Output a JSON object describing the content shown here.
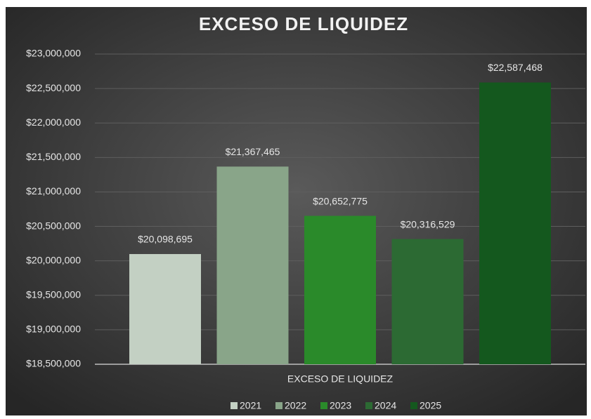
{
  "chart_data": {
    "type": "bar",
    "title": "EXCESO DE LIQUIDEZ",
    "categories": [
      "EXCESO DE LIQUIDEZ"
    ],
    "series": [
      {
        "name": "2021",
        "color": "#c3d0c3",
        "values": [
          20098695
        ],
        "value_labels": [
          "$20,098,695"
        ]
      },
      {
        "name": "2022",
        "color": "#89a589",
        "values": [
          21367465
        ],
        "value_labels": [
          "$21,367,465"
        ]
      },
      {
        "name": "2023",
        "color": "#2a8a2a",
        "values": [
          20652775
        ],
        "value_labels": [
          "$20,652,775"
        ]
      },
      {
        "name": "2024",
        "color": "#2c6a33",
        "values": [
          20316529
        ],
        "value_labels": [
          "$20,316,529"
        ]
      },
      {
        "name": "2025",
        "color": "#14581e",
        "values": [
          22587468
        ],
        "value_labels": [
          "$22,587,468"
        ]
      }
    ],
    "ylim": [
      18500000,
      23000000
    ],
    "yticks": [
      {
        "value": 18500000,
        "label": "$18,500,000"
      },
      {
        "value": 19000000,
        "label": "$19,000,000"
      },
      {
        "value": 19500000,
        "label": "$19,500,000"
      },
      {
        "value": 20000000,
        "label": "$20,000,000"
      },
      {
        "value": 20500000,
        "label": "$20,500,000"
      },
      {
        "value": 21000000,
        "label": "$21,000,000"
      },
      {
        "value": 21500000,
        "label": "$21,500,000"
      },
      {
        "value": 22000000,
        "label": "$22,000,000"
      },
      {
        "value": 22500000,
        "label": "$22,500,000"
      },
      {
        "value": 23000000,
        "label": "$23,000,000"
      }
    ],
    "grid": true,
    "legend": "bottom"
  }
}
